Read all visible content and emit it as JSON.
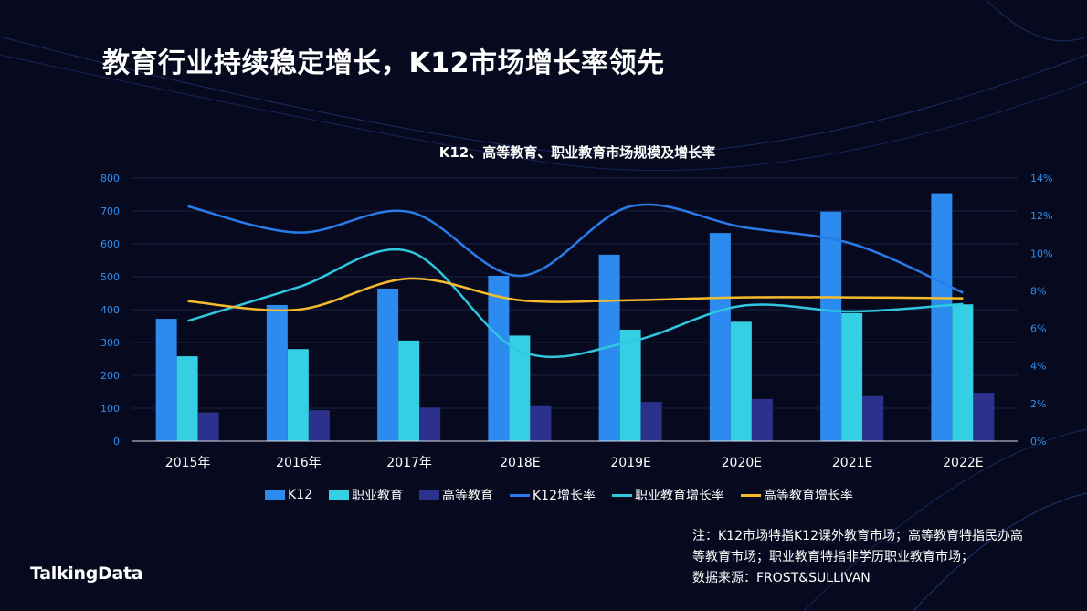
{
  "title": "教育行业持续稳定增长，K12市场增长率领先",
  "chart_data": {
    "type": "bar",
    "title": "K12、高等教育、职业教育市场规模及增长率",
    "categories": [
      "2015年",
      "2016年",
      "2017年",
      "2018E",
      "2019E",
      "2020E",
      "2021E",
      "2022E"
    ],
    "y_left": {
      "range": [
        0,
        800
      ],
      "ticks": [
        "0",
        "100",
        "200",
        "300",
        "400",
        "500",
        "600",
        "700",
        "800"
      ]
    },
    "y_right": {
      "range": [
        0,
        14
      ],
      "ticks": [
        "0%",
        "2%",
        "4%",
        "6%",
        "8%",
        "10%",
        "12%",
        "14%"
      ]
    },
    "grid": true,
    "legend_placement": "bottom",
    "series": [
      {
        "name": "K12",
        "kind": "bar",
        "axis": "left",
        "color": "#2b8bef",
        "values": [
          372,
          414,
          464,
          503,
          567,
          633,
          698,
          754
        ]
      },
      {
        "name": "职业教育",
        "kind": "bar",
        "axis": "left",
        "color": "#34cfe3",
        "values": [
          258,
          280,
          306,
          321,
          339,
          363,
          389,
          416
        ]
      },
      {
        "name": "高等教育",
        "kind": "bar",
        "axis": "left",
        "color": "#2c318c",
        "values": [
          87,
          94,
          102,
          109,
          119,
          128,
          137,
          147
        ]
      },
      {
        "name": "K12增长率",
        "kind": "line",
        "axis": "right",
        "color": "#2a7ae8",
        "values": [
          12.5,
          11.1,
          12.2,
          8.8,
          12.5,
          11.4,
          10.5,
          7.9
        ]
      },
      {
        "name": "职业教育增长率",
        "kind": "line",
        "axis": "right",
        "color": "#2fc8e0",
        "values": [
          6.4,
          8.2,
          10.1,
          4.8,
          5.3,
          7.2,
          6.9,
          7.3
        ]
      },
      {
        "name": "高等教育增长率",
        "kind": "line",
        "axis": "right",
        "color": "#f7bc2e",
        "values": [
          7.45,
          7.0,
          8.65,
          7.5,
          7.5,
          7.65,
          7.65,
          7.6
        ]
      }
    ]
  },
  "note": [
    "注：K12市场特指K12课外教育市场；高等教育特指民办高",
    "等教育市场；职业教育特指非学历职业教育市场；",
    "数据来源：FROST&SULLIVAN"
  ],
  "logo": "TalkingData"
}
